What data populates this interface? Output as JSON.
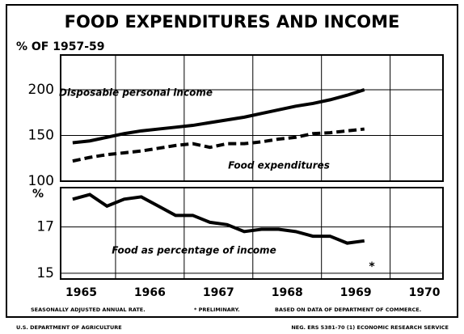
{
  "title": "FOOD EXPENDITURES AND INCOME",
  "chart_data": [
    {
      "type": "line",
      "ylabel": "% OF 1957-59",
      "xlim": [
        1965.2,
        1970.77
      ],
      "xgrid": [
        1966,
        1967,
        1968,
        1969,
        1970
      ],
      "ylim": [
        100,
        238
      ],
      "yticks": [
        100,
        150,
        200
      ],
      "x": [
        1965.375,
        1965.625,
        1965.875,
        1966.125,
        1966.375,
        1966.625,
        1966.875,
        1967.125,
        1967.375,
        1967.625,
        1967.875,
        1968.125,
        1968.375,
        1968.625,
        1968.875,
        1969.125,
        1969.375,
        1969.625
      ],
      "series": [
        {
          "name": "Disposable personal income",
          "color": "#000000",
          "dash": false,
          "values": [
            142,
            144,
            148,
            152,
            155,
            157,
            159,
            161,
            164,
            167,
            170,
            174,
            178,
            182,
            185,
            189,
            194,
            200
          ]
        },
        {
          "name": "Food expenditures",
          "color": "#000000",
          "dash": true,
          "values": [
            122,
            126,
            129,
            131,
            133,
            136,
            139,
            141,
            137,
            141,
            141,
            143,
            146,
            148,
            152,
            153,
            155,
            157
          ]
        }
      ]
    },
    {
      "type": "line",
      "ylabel": "%",
      "xlim": [
        1965.2,
        1970.77
      ],
      "xgrid": [
        1966,
        1967,
        1968,
        1969,
        1970
      ],
      "ylim": [
        14.75,
        18.7
      ],
      "yticks": [
        15,
        17
      ],
      "xticks": [
        {
          "value": 1965.5,
          "label": "1965"
        },
        {
          "value": 1966.5,
          "label": "1966"
        },
        {
          "value": 1967.5,
          "label": "1967"
        },
        {
          "value": 1968.5,
          "label": "1968"
        },
        {
          "value": 1969.5,
          "label": "1969"
        },
        {
          "value": 1970.5,
          "label": "1970"
        }
      ],
      "x": [
        1965.375,
        1965.625,
        1965.875,
        1966.125,
        1966.375,
        1966.625,
        1966.875,
        1967.125,
        1967.375,
        1967.625,
        1967.875,
        1968.125,
        1968.375,
        1968.625,
        1968.875,
        1969.125,
        1969.375,
        1969.625
      ],
      "series": [
        {
          "name": "Food as percentage of income",
          "color": "#000000",
          "dash": false,
          "values": [
            18.2,
            18.4,
            17.9,
            18.2,
            18.3,
            17.9,
            17.5,
            17.5,
            17.2,
            17.1,
            16.8,
            16.9,
            16.9,
            16.8,
            16.6,
            16.6,
            16.3,
            16.4
          ]
        }
      ]
    }
  ],
  "notes": [
    "SEASONALLY ADJUSTED ANNUAL RATE.",
    "* PRELIMINARY.",
    "BASED ON DATA OF DEPARTMENT OF COMMERCE.",
    "U.S. DEPARTMENT OF AGRICULTURE",
    "NEG. ERS 5381-70 (1)   ECONOMIC RESEARCH SERVICE"
  ],
  "marker": "*"
}
